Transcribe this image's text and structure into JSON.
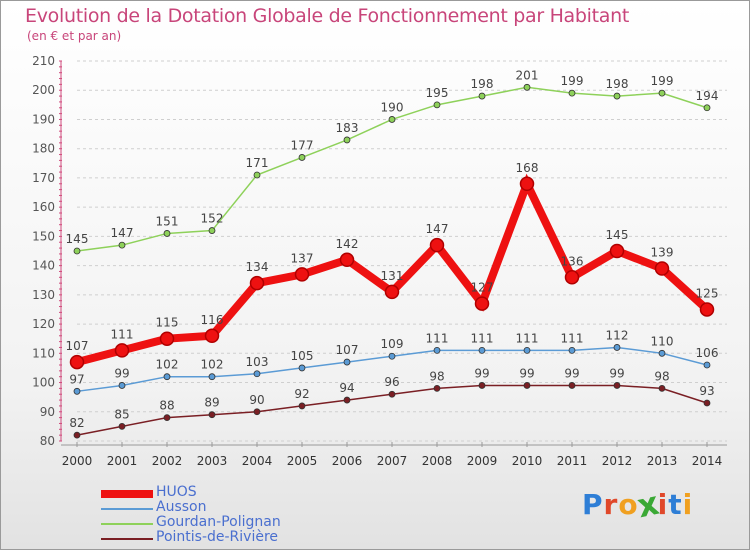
{
  "title": "Evolution de la Dotation Globale de Fonctionnement par Habitant",
  "subtitle": "(en € et par an)",
  "brand": {
    "letters": [
      "P",
      "r",
      "o",
      "x",
      "i",
      "t",
      "i"
    ],
    "colors": [
      "#2e7ed6",
      "#e0482a",
      "#f0a020",
      "#3aa835",
      "#e0482a",
      "#2e7ed6",
      "#f0a020"
    ]
  },
  "chart_data": {
    "type": "line",
    "title": "Evolution de la Dotation Globale de Fonctionnement par Habitant",
    "subtitle": "(en € et par an)",
    "xlabel": "",
    "ylabel": "",
    "ylim": [
      80,
      210
    ],
    "yticks": [
      80,
      90,
      100,
      110,
      120,
      130,
      140,
      150,
      160,
      170,
      180,
      190,
      200,
      210
    ],
    "categories": [
      "2000",
      "2001",
      "2002",
      "2003",
      "2004",
      "2005",
      "2006",
      "2007",
      "2008",
      "2009",
      "2010",
      "2011",
      "2012",
      "2013",
      "2014"
    ],
    "legend_position": "bottom-left",
    "grid": "horizontal dashed",
    "series": [
      {
        "name": "HUOS",
        "color": "#ee1111",
        "emphasis": true,
        "values": [
          107,
          111,
          115,
          116,
          134,
          137,
          142,
          131,
          147,
          127,
          168,
          136,
          145,
          139,
          125
        ]
      },
      {
        "name": "Ausson",
        "color": "#5b9bd5",
        "emphasis": false,
        "values": [
          97,
          99,
          102,
          102,
          103,
          105,
          107,
          109,
          111,
          111,
          111,
          111,
          112,
          110,
          106
        ]
      },
      {
        "name": "Gourdan-Polignan",
        "color": "#8ed15a",
        "emphasis": false,
        "values": [
          145,
          147,
          151,
          152,
          171,
          177,
          183,
          190,
          195,
          198,
          201,
          199,
          198,
          199,
          194
        ]
      },
      {
        "name": "Pointis-de-Rivière",
        "color": "#7a1f24",
        "emphasis": false,
        "values": [
          82,
          85,
          88,
          89,
          90,
          92,
          94,
          96,
          98,
          99,
          99,
          99,
          99,
          98,
          93
        ]
      }
    ]
  }
}
